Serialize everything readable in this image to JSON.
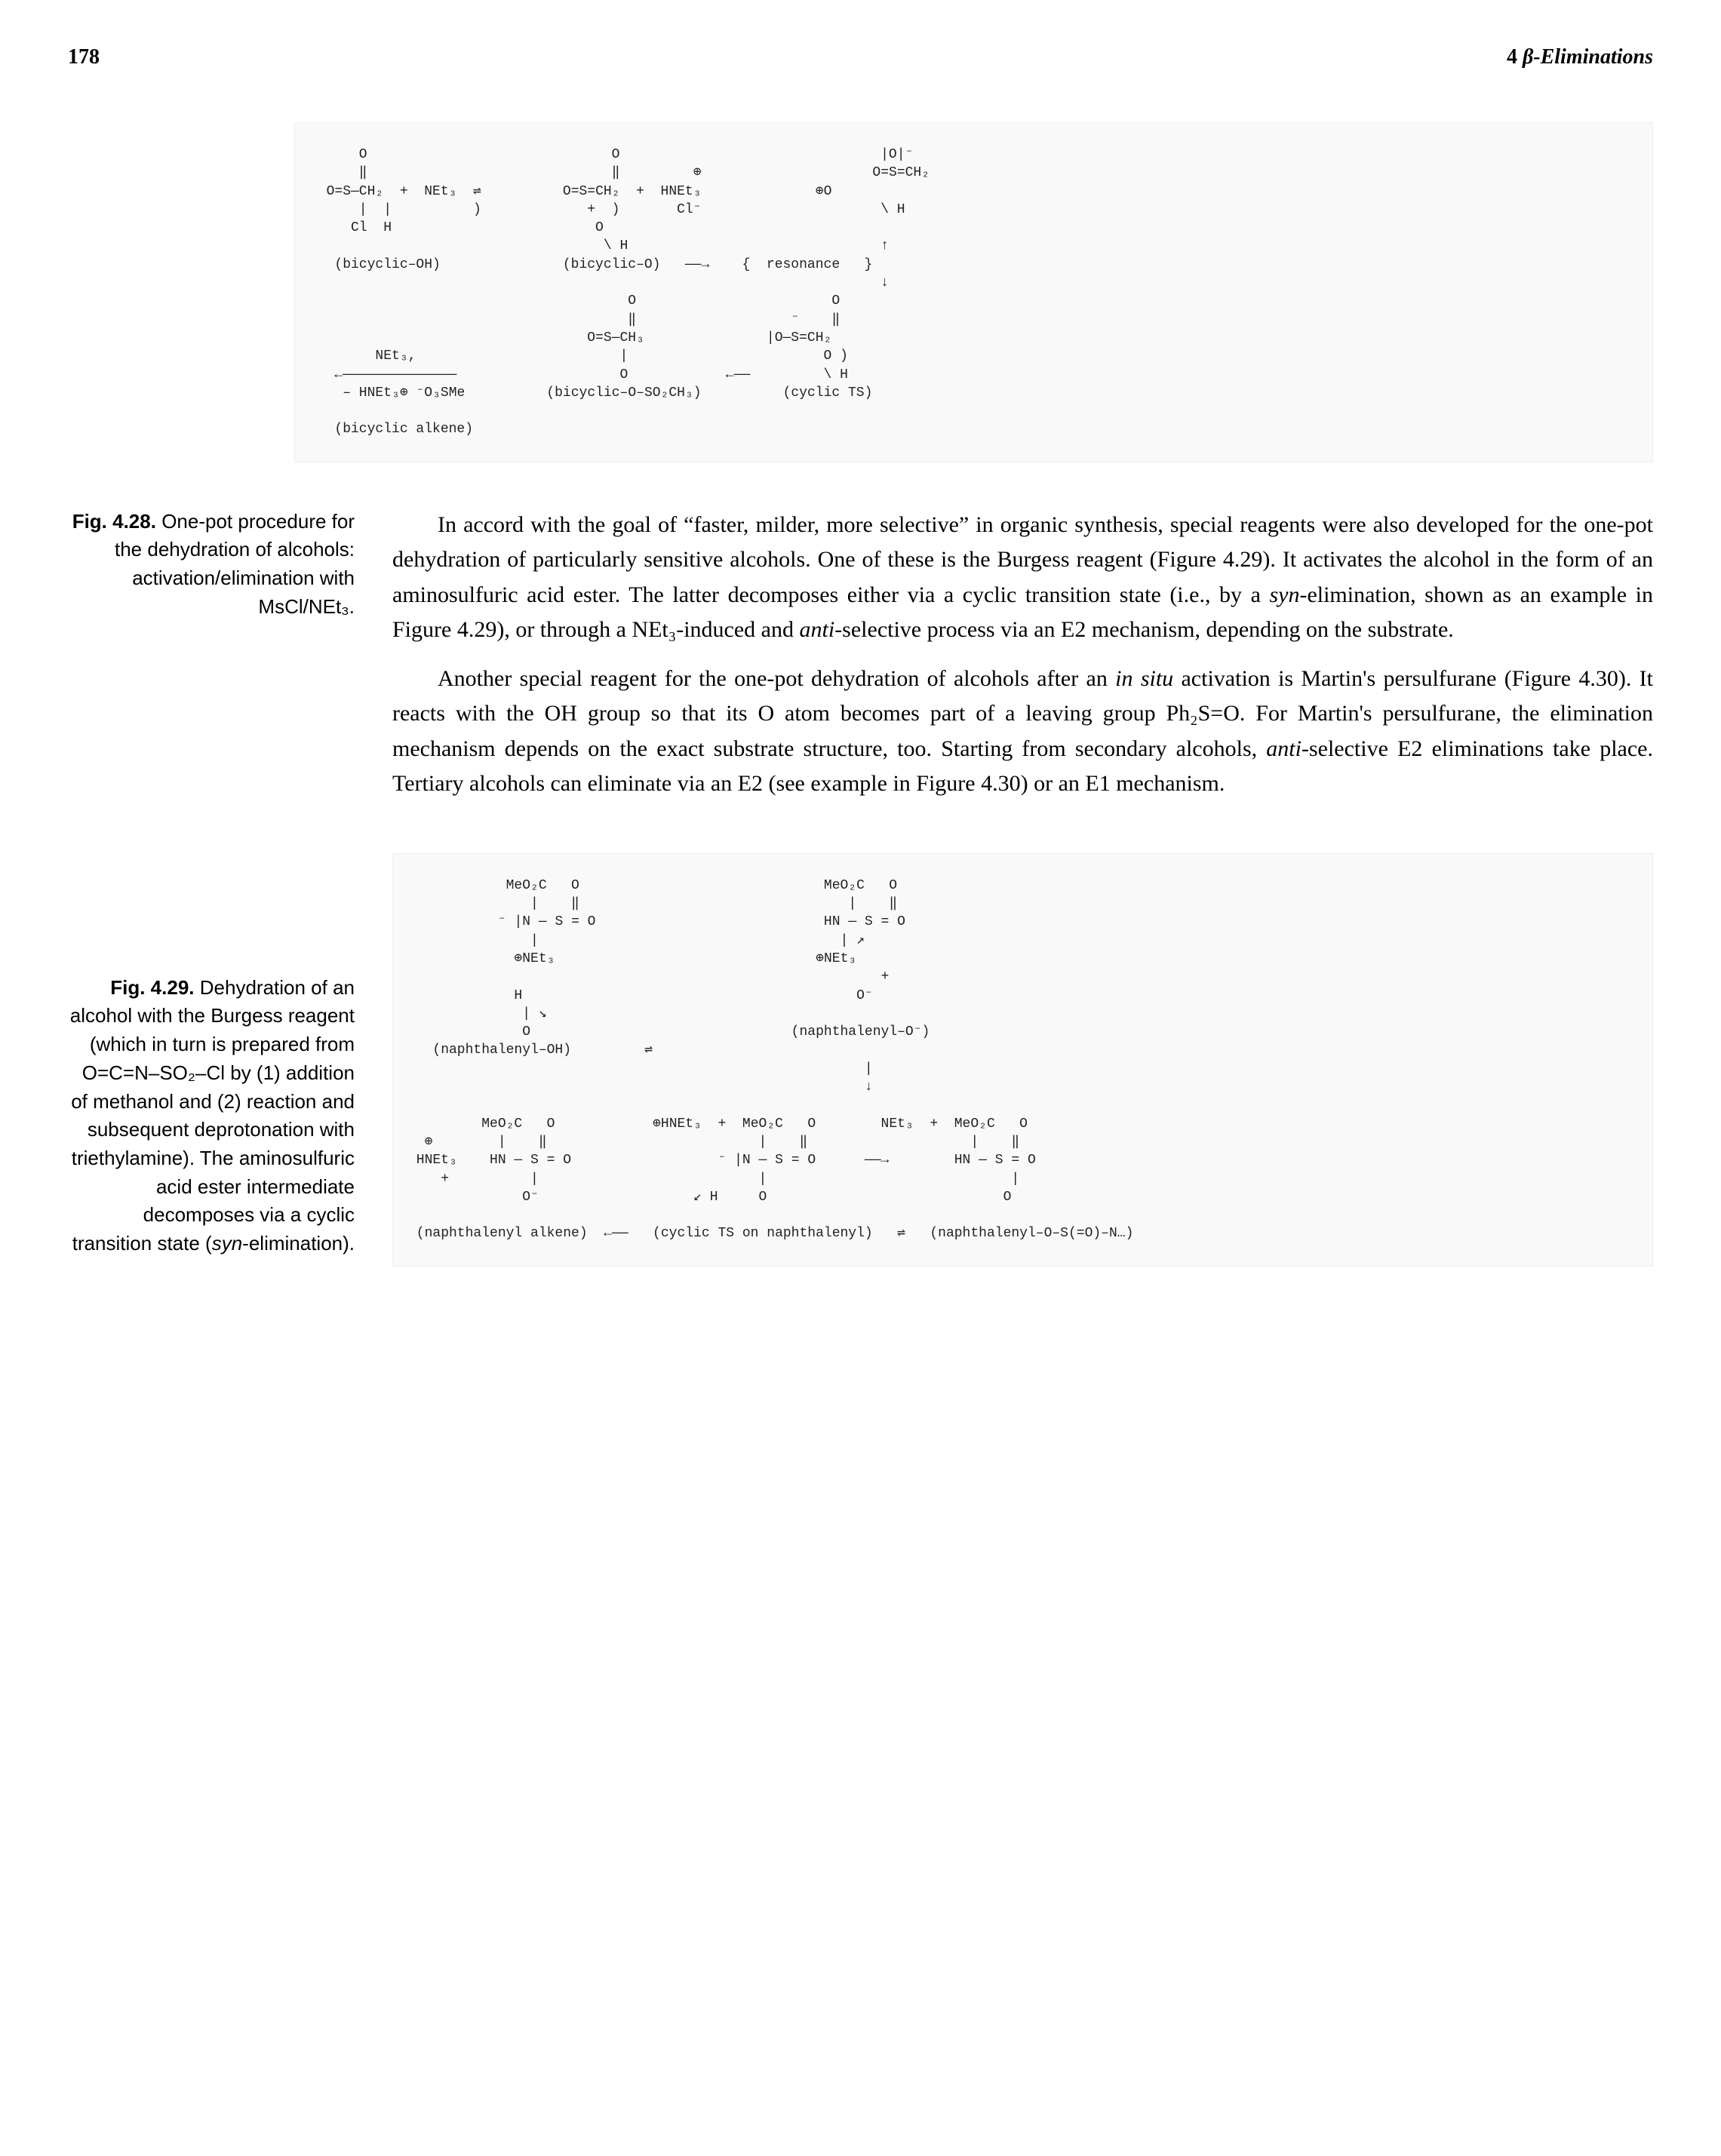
{
  "page_number": "178",
  "running_head_chapter": "4",
  "running_head_title": "β-Eliminations",
  "figure428": {
    "label": "Fig. 4.28.",
    "caption": "One-pot procedure for the dehydration of alcohols: activation/elimination with MsCl/NEt₃.",
    "ascii": "      O                              O                                |O|⁻\n      ‖                              ‖         ⊕                     O=S=CH₂\n  O=S—CH₂  +  NEt₃  ⇌          O=S=CH₂  +  HNEt₃              ⊕O\n      |  |          )             +  )       Cl⁻                      \\ H\n     Cl  H                         O                                   \n                                    \\ H                               ↑\n   (bicyclic–OH)               (bicyclic–O)   ——→    {  resonance   }\n                                                                      ↓\n                                       O                        O\n                                       ‖                   ⁻    ‖\n                                  O=S—CH₃               |O—S=CH₂\n        NEt₃,                         |                        O )\n   ←——————————————                    O            ←——         \\ H\n    – HNEt₃⊕ ⁻O₃SMe          (bicyclic–O–SO₂CH₃)          (cyclic TS)\n\n   (bicyclic alkene)"
  },
  "para1": "In accord with the goal of “faster, milder, more selective” in organic synthesis, special reagents were also developed for the one-pot dehydration of particularly sensitive alcohols. One of these is the Burgess reagent (Figure 4.29). It activates the alcohol in the form of an aminosulfuric acid ester. The latter decomposes either via a cyclic transition state (i.e., by a ",
  "para1_syn": "syn",
  "para1_mid": "-elimination, shown as an example in Figure 4.29), or through a NEt₃-induced and ",
  "para1_anti": "anti",
  "para1_end": "-selective process via an E2 mechanism, depending on the substrate.",
  "para2_a": "Another special reagent for the one-pot dehydration of alcohols after an ",
  "para2_insitu": "in situ",
  "para2_b": " activation is Martin's persulfurane (Figure 4.30). It reacts with the OH group so that its O atom becomes part of a leaving group Ph₂S=O. For Martin's persulfurane, the elimination mechanism depends on the exact substrate structure, too. Starting from secondary alcohols, ",
  "para2_anti": "anti",
  "para2_c": "-selective E2 eliminations take place. Tertiary alcohols can eliminate via an E2 (see example in Figure 4.30) or an E1 mechanism.",
  "figure429": {
    "label": "Fig. 4.29.",
    "caption_a": "Dehydration of an alcohol with the Burgess reagent (which in turn is prepared from O=C=N–SO₂–Cl by (1) addition of methanol and (2) reaction and subsequent deprotonation with triethylamine). The aminosulfuric acid ester intermediate decomposes via a cyclic transition state (",
    "caption_syn": "syn",
    "caption_b": "-elimination).",
    "ascii": "            MeO₂C   O                              MeO₂C   O\n               |    ‖                                 |    ‖\n           ⁻ |N — S = O                            HN — S = O\n               |                                     | ↗\n             ⊕NEt₃                                ⊕NEt₃\n                                                          +\n             H                                         O⁻\n              | ↘\n              O                                (naphthalenyl–O⁻)\n   (naphthalenyl–OH)         ⇌\n                                                        |\n                                                        ↓\n\n         MeO₂C   O            ⊕HNEt₃  +  MeO₂C   O        NEt₃  +  MeO₂C   O\n  ⊕        |    ‖                          |    ‖                    |    ‖\n HNEt₃    HN — S = O                  ⁻ |N — S = O      ——→        HN — S = O\n    +          |                           |                              |\n              O⁻                   ↙ H     O                             O\n                                          \n (naphthalenyl alkene)  ←——   (cyclic TS on naphthalenyl)   ⇌   (naphthalenyl–O–S(=O)–N…)"
  }
}
